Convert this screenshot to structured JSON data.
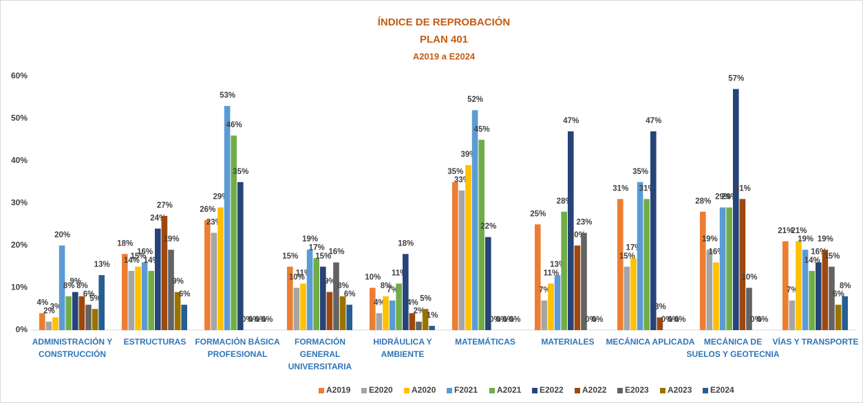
{
  "chart_data": {
    "type": "bar",
    "title": "ÍNDICE DE REPROBACIÓN",
    "subtitle": "PLAN 401",
    "period": "A2019 a E2024",
    "categories": [
      "ADMINISTRACIÓN Y\nCONSTRUCCIÓN",
      "ESTRUCTURAS",
      "FORMACIÓN BÁSICA\nPROFESIONAL",
      "FORMACIÓN\nGENERAL\nUNIVERSITARIA",
      "HIDRÁULICA Y\nAMBIENTE",
      "MATEMÁTICAS",
      "MATERIALES",
      "MECÁNICA APLICADA",
      "MECÁNICA DE\nSUELOS Y GEOTECNIA",
      "VÍAS Y TRANSPORTE"
    ],
    "ylim": [
      0,
      60
    ],
    "yticks": [
      {
        "value": 0,
        "label": "0%"
      },
      {
        "value": 10,
        "label": "10%"
      },
      {
        "value": 20,
        "label": "20%"
      },
      {
        "value": 30,
        "label": "30%"
      },
      {
        "value": 40,
        "label": "40%"
      },
      {
        "value": 50,
        "label": "50%"
      },
      {
        "value": 60,
        "label": "60%"
      }
    ],
    "grid": false,
    "legend": "bottom",
    "series": [
      {
        "name": "A2019",
        "color": "#ED7D31",
        "values": [
          4,
          18,
          26,
          15,
          10,
          35,
          25,
          31,
          28,
          21
        ],
        "value_labels": [
          "4%",
          "18%",
          "26%",
          "15%",
          "10%",
          "35%",
          "25%",
          "31%",
          "28%",
          "21%"
        ]
      },
      {
        "name": "E2020",
        "color": "#A5A5A5",
        "values": [
          2,
          14,
          23,
          10,
          4,
          33,
          7,
          15,
          19,
          7
        ],
        "value_labels": [
          "2%",
          "14%",
          "23%",
          "10%",
          "4%",
          "33%",
          "7%",
          "15%",
          "19%",
          "7%"
        ]
      },
      {
        "name": "A2020",
        "color": "#FFC000",
        "values": [
          3,
          15,
          29,
          11,
          8,
          39,
          11,
          17,
          16,
          21
        ],
        "value_labels": [
          "3%",
          "15%",
          "29%",
          "11%",
          "8%",
          "39%",
          "11%",
          "17%",
          "16%",
          "21%"
        ]
      },
      {
        "name": "F2021",
        "color": "#5B9BD5",
        "values": [
          20,
          16,
          53,
          19,
          7,
          52,
          13,
          35,
          29,
          19
        ],
        "value_labels": [
          "20%",
          "16%",
          "53%",
          "19%",
          "7%",
          "52%",
          "13%",
          "35%",
          "29%",
          "19%"
        ]
      },
      {
        "name": "A2021",
        "color": "#70AD47",
        "values": [
          8,
          14,
          46,
          17,
          11,
          45,
          28,
          31,
          29,
          14
        ],
        "value_labels": [
          "8%",
          "14%",
          "46%",
          "17%",
          "11%",
          "45%",
          "28%",
          "31%",
          "29%",
          "14%"
        ]
      },
      {
        "name": "E2022",
        "color": "#264478",
        "values": [
          9,
          24,
          35,
          15,
          18,
          22,
          47,
          47,
          57,
          16
        ],
        "value_labels": [
          "9%",
          "24%",
          "35%",
          "15%",
          "18%",
          "22%",
          "47%",
          "47%",
          "57%",
          "16%"
        ]
      },
      {
        "name": "A2022",
        "color": "#9E480E",
        "values": [
          8,
          27,
          0,
          9,
          4,
          0,
          20,
          3,
          31,
          19
        ],
        "value_labels": [
          "8%",
          "27%",
          "0%",
          "9%",
          "4%",
          "0%",
          "20%",
          "3%",
          "31%",
          "19%"
        ]
      },
      {
        "name": "E2023",
        "color": "#636363",
        "values": [
          6,
          19,
          0,
          16,
          2,
          0,
          23,
          0,
          10,
          15
        ],
        "value_labels": [
          "6%",
          "19%",
          "0%",
          "16%",
          "2%",
          "0%",
          "23%",
          "0%",
          "10%",
          "15%"
        ]
      },
      {
        "name": "A2023",
        "color": "#997300",
        "values": [
          5,
          9,
          0,
          8,
          5,
          0,
          0,
          0,
          0,
          6
        ],
        "value_labels": [
          "5%",
          "9%",
          "0%",
          "8%",
          "5%",
          "0%",
          "0%",
          "0%",
          "0%",
          "6%"
        ]
      },
      {
        "name": "E2024",
        "color": "#255E91",
        "values": [
          13,
          6,
          0,
          6,
          1,
          0,
          0,
          0,
          0,
          8
        ],
        "value_labels": [
          "13%",
          "6%",
          "0%",
          "6%",
          "1%",
          "0%",
          "0%",
          "0%",
          "0%",
          "8%"
        ]
      }
    ]
  }
}
